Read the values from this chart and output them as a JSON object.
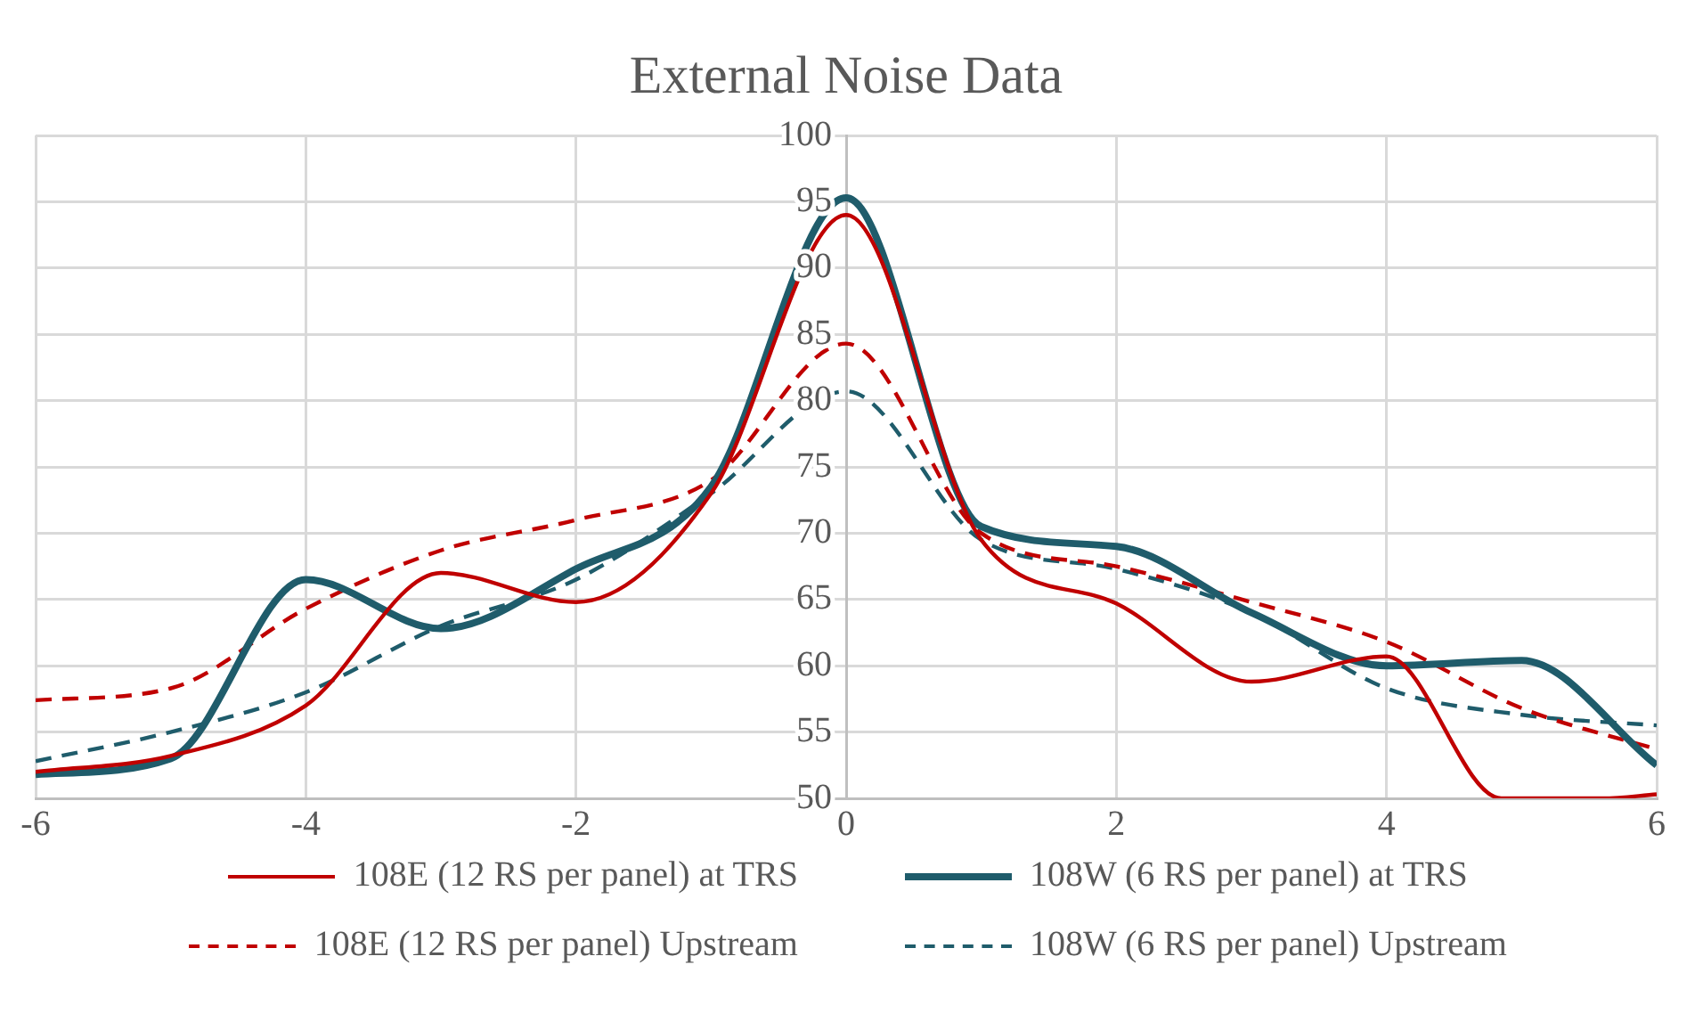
{
  "chart_data": {
    "type": "line",
    "title": "External Noise Data",
    "x": [
      -6,
      -5,
      -4,
      -3,
      -2,
      -1,
      0,
      1,
      2,
      3,
      4,
      5,
      6
    ],
    "xlim": [
      -6,
      6
    ],
    "xticks": [
      -6,
      -4,
      -2,
      0,
      2,
      4,
      6
    ],
    "ylim": [
      50,
      100
    ],
    "yticks": [
      50,
      55,
      60,
      65,
      70,
      75,
      80,
      85,
      90,
      95,
      100
    ],
    "grid": true,
    "legend": "bottom",
    "marker": "none",
    "series": [
      {
        "name": "108E (12 RS per panel) at TRS",
        "color": "#c00000",
        "line_style": "solid",
        "x": [
          -6,
          -5,
          -4,
          -3,
          -2,
          -1,
          0,
          1,
          2,
          3,
          4,
          4.85,
          5.6,
          6
        ],
        "values": [
          52,
          53.2,
          57,
          67,
          64.8,
          73,
          94,
          69.5,
          64.7,
          58.8,
          60.7,
          50,
          50,
          50.3
        ]
      },
      {
        "name": "108W (6 RS per panel) at TRS",
        "color": "#1f5c6b",
        "line_style": "solid",
        "values": [
          51.8,
          53,
          66.5,
          62.8,
          67.3,
          73.5,
          95.3,
          70.5,
          69,
          64,
          60,
          60.4,
          52.5
        ]
      },
      {
        "name": "108E (12 RS per panel) Upstream",
        "color": "#c00000",
        "line_style": "dashed",
        "values": [
          57.4,
          58.3,
          64.3,
          68.7,
          71,
          74,
          84.3,
          70,
          67.5,
          64.8,
          61.8,
          56.8,
          53.7
        ]
      },
      {
        "name": "108W (6 RS per panel) Upstream",
        "color": "#1f5c6b",
        "line_style": "dashed",
        "values": [
          52.8,
          55,
          58,
          63,
          66.5,
          73,
          80.7,
          69.5,
          67.3,
          64,
          58.3,
          56.3,
          55.5
        ]
      }
    ]
  }
}
